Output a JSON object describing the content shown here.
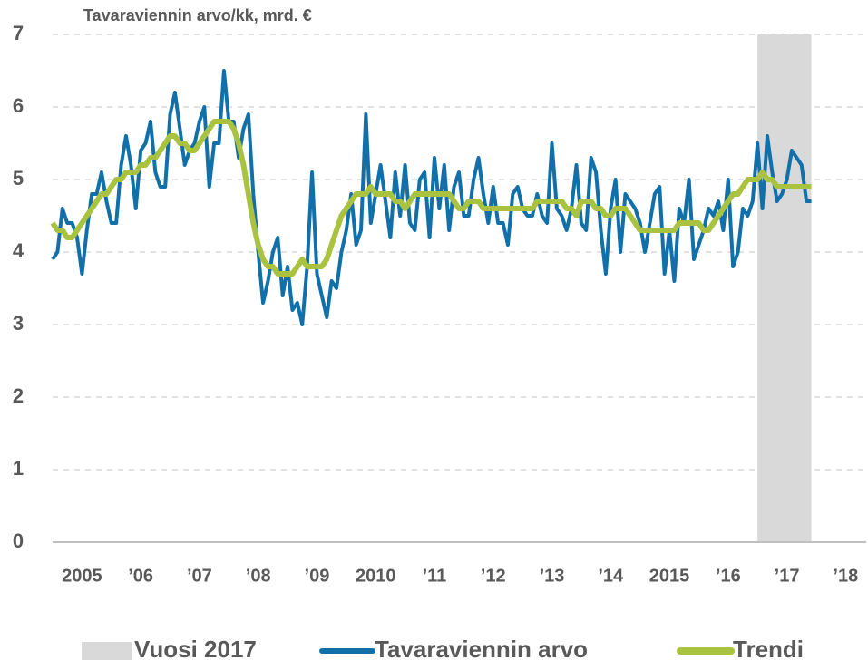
{
  "chart_data": {
    "type": "line",
    "title": "Tavaraviennin arvo/kk, mrd. €",
    "x": [
      2005,
      2005.083,
      2005.167,
      2005.25,
      2005.333,
      2005.417,
      2005.5,
      2005.583,
      2005.667,
      2005.75,
      2005.833,
      2005.917,
      2006,
      2006.083,
      2006.167,
      2006.25,
      2006.333,
      2006.417,
      2006.5,
      2006.583,
      2006.667,
      2006.75,
      2006.833,
      2006.917,
      2007,
      2007.083,
      2007.167,
      2007.25,
      2007.333,
      2007.417,
      2007.5,
      2007.583,
      2007.667,
      2007.75,
      2007.833,
      2007.917,
      2008,
      2008.083,
      2008.167,
      2008.25,
      2008.333,
      2008.417,
      2008.5,
      2008.583,
      2008.667,
      2008.75,
      2008.833,
      2008.917,
      2009,
      2009.083,
      2009.167,
      2009.25,
      2009.333,
      2009.417,
      2009.5,
      2009.583,
      2009.667,
      2009.75,
      2009.833,
      2009.917,
      2010,
      2010.083,
      2010.167,
      2010.25,
      2010.333,
      2010.417,
      2010.5,
      2010.583,
      2010.667,
      2010.75,
      2010.833,
      2010.917,
      2011,
      2011.083,
      2011.167,
      2011.25,
      2011.333,
      2011.417,
      2011.5,
      2011.583,
      2011.667,
      2011.75,
      2011.833,
      2011.917,
      2012,
      2012.083,
      2012.167,
      2012.25,
      2012.333,
      2012.417,
      2012.5,
      2012.583,
      2012.667,
      2012.75,
      2012.833,
      2012.917,
      2013,
      2013.083,
      2013.167,
      2013.25,
      2013.333,
      2013.417,
      2013.5,
      2013.583,
      2013.667,
      2013.75,
      2013.833,
      2013.917,
      2014,
      2014.083,
      2014.167,
      2014.25,
      2014.333,
      2014.417,
      2014.5,
      2014.583,
      2014.667,
      2014.75,
      2014.833,
      2014.917,
      2015,
      2015.083,
      2015.167,
      2015.25,
      2015.333,
      2015.417,
      2015.5,
      2015.583,
      2015.667,
      2015.75,
      2015.833,
      2015.917,
      2016,
      2016.083,
      2016.167,
      2016.25,
      2016.333,
      2016.417,
      2016.5,
      2016.583,
      2016.667,
      2016.75,
      2016.833,
      2016.917,
      2017,
      2017.083,
      2017.167,
      2017.25,
      2017.333,
      2017.417,
      2017.5,
      2017.583,
      2017.667,
      2017.75,
      2017.833,
      2017.917
    ],
    "series": [
      {
        "name": "Tavaraviennin arvo",
        "color": "#1170aa",
        "width": 4,
        "values": [
          3.9,
          4.0,
          4.6,
          4.4,
          4.4,
          4.2,
          3.7,
          4.3,
          4.8,
          4.8,
          5.1,
          4.7,
          4.4,
          4.4,
          5.2,
          5.6,
          5.2,
          4.6,
          5.4,
          5.5,
          5.8,
          5.1,
          4.9,
          4.9,
          5.9,
          6.2,
          5.7,
          5.2,
          5.4,
          5.5,
          5.8,
          6.0,
          4.9,
          5.5,
          5.5,
          6.5,
          5.8,
          5.8,
          5.3,
          5.7,
          5.9,
          4.8,
          4.0,
          3.3,
          3.6,
          4.0,
          4.2,
          3.4,
          3.8,
          3.2,
          3.3,
          3.0,
          3.8,
          5.1,
          3.7,
          3.4,
          3.1,
          3.6,
          3.5,
          4.0,
          4.3,
          4.8,
          4.1,
          4.3,
          5.9,
          4.4,
          4.8,
          5.2,
          4.7,
          4.2,
          5.1,
          4.5,
          5.2,
          4.4,
          4.3,
          5.0,
          5.1,
          4.2,
          5.3,
          4.6,
          5.2,
          4.3,
          4.9,
          5.1,
          4.5,
          4.5,
          5.0,
          5.3,
          4.8,
          4.4,
          4.9,
          4.4,
          4.4,
          4.1,
          4.8,
          4.9,
          4.6,
          4.5,
          4.5,
          4.8,
          4.5,
          4.4,
          5.5,
          4.6,
          4.5,
          4.3,
          4.6,
          5.2,
          4.4,
          4.3,
          5.3,
          5.1,
          4.3,
          3.7,
          4.6,
          5.0,
          4.0,
          4.8,
          4.7,
          4.6,
          4.4,
          4.0,
          4.4,
          4.8,
          4.9,
          3.7,
          4.3,
          3.6,
          4.6,
          4.4,
          5.0,
          3.9,
          4.1,
          4.3,
          4.6,
          4.5,
          4.7,
          4.3,
          5.0,
          3.8,
          4.0,
          4.6,
          4.5,
          4.7,
          5.5,
          4.6,
          5.6,
          5.1,
          4.7,
          4.8,
          5.0,
          5.4,
          5.3,
          5.2,
          4.7,
          4.7
        ]
      },
      {
        "name": "Trendi",
        "color": "#a9c23f",
        "width": 6,
        "values": [
          4.4,
          4.3,
          4.3,
          4.2,
          4.2,
          4.3,
          4.4,
          4.5,
          4.6,
          4.7,
          4.8,
          4.8,
          4.9,
          5.0,
          5.0,
          5.1,
          5.1,
          5.1,
          5.2,
          5.2,
          5.3,
          5.3,
          5.4,
          5.5,
          5.6,
          5.6,
          5.5,
          5.5,
          5.4,
          5.4,
          5.5,
          5.6,
          5.7,
          5.8,
          5.8,
          5.8,
          5.8,
          5.7,
          5.5,
          5.2,
          4.8,
          4.4,
          4.1,
          3.9,
          3.8,
          3.8,
          3.7,
          3.7,
          3.7,
          3.7,
          3.8,
          3.9,
          3.8,
          3.8,
          3.8,
          3.8,
          3.9,
          4.1,
          4.3,
          4.5,
          4.6,
          4.7,
          4.8,
          4.8,
          4.8,
          4.9,
          4.8,
          4.8,
          4.8,
          4.8,
          4.7,
          4.7,
          4.6,
          4.7,
          4.8,
          4.8,
          4.8,
          4.8,
          4.8,
          4.8,
          4.8,
          4.8,
          4.7,
          4.6,
          4.6,
          4.7,
          4.7,
          4.7,
          4.6,
          4.6,
          4.6,
          4.6,
          4.6,
          4.6,
          4.6,
          4.6,
          4.6,
          4.6,
          4.6,
          4.7,
          4.7,
          4.7,
          4.7,
          4.7,
          4.7,
          4.6,
          4.6,
          4.5,
          4.7,
          4.7,
          4.7,
          4.6,
          4.6,
          4.5,
          4.5,
          4.6,
          4.6,
          4.6,
          4.5,
          4.4,
          4.3,
          4.3,
          4.3,
          4.3,
          4.3,
          4.3,
          4.3,
          4.3,
          4.4,
          4.4,
          4.4,
          4.4,
          4.4,
          4.3,
          4.3,
          4.4,
          4.5,
          4.6,
          4.7,
          4.8,
          4.8,
          4.9,
          5.0,
          5.0,
          5.0,
          5.1,
          5.0,
          5.0,
          4.9,
          4.9,
          4.9,
          4.9,
          4.9,
          4.9,
          4.9,
          4.9
        ]
      }
    ],
    "highlight": {
      "name": "Vuosi 2017",
      "from": 2017,
      "to": 2017.917,
      "color": "#d9d9d9"
    },
    "xlim": [
      2005,
      2018.85
    ],
    "xticks": [
      {
        "value": 2005.5,
        "label": "2005"
      },
      {
        "value": 2006.5,
        "label": "’06"
      },
      {
        "value": 2007.5,
        "label": "’07"
      },
      {
        "value": 2008.5,
        "label": "’08"
      },
      {
        "value": 2009.5,
        "label": "’09"
      },
      {
        "value": 2010.5,
        "label": "2010"
      },
      {
        "value": 2011.5,
        "label": "’11"
      },
      {
        "value": 2012.5,
        "label": "’12"
      },
      {
        "value": 2013.5,
        "label": "’13"
      },
      {
        "value": 2014.5,
        "label": "’14"
      },
      {
        "value": 2015.5,
        "label": "2015"
      },
      {
        "value": 2016.5,
        "label": "’16"
      },
      {
        "value": 2017.5,
        "label": "’17"
      },
      {
        "value": 2018.5,
        "label": "’18"
      }
    ],
    "ylim": [
      0,
      7
    ],
    "yticks": [
      0,
      1,
      2,
      3,
      4,
      5,
      6,
      7
    ],
    "grid": true,
    "legend": "bottom"
  }
}
